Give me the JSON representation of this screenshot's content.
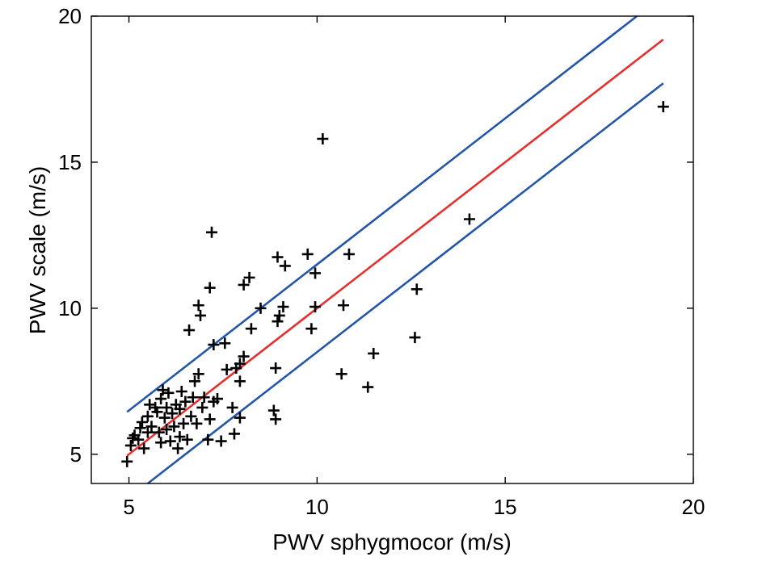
{
  "chart_data": {
    "type": "scatter",
    "title": "",
    "xlabel": "PWV sphygmocor (m/s)",
    "ylabel": "PWV scale (m/s)",
    "xlim": [
      4,
      20
    ],
    "ylim": [
      4,
      20
    ],
    "xticks": [
      5,
      10,
      15,
      20
    ],
    "yticks": [
      5,
      10,
      15,
      20
    ],
    "grid": false,
    "colors": {
      "points": "#000000",
      "identity": "#e53030",
      "limits": "#2456a8",
      "axes": "#000000"
    },
    "points": [
      [
        4.95,
        4.75
      ],
      [
        5.05,
        5.3
      ],
      [
        5.1,
        5.55
      ],
      [
        5.15,
        5.65
      ],
      [
        5.25,
        5.5
      ],
      [
        5.3,
        5.9
      ],
      [
        5.35,
        6.1
      ],
      [
        5.4,
        5.2
      ],
      [
        5.5,
        5.75
      ],
      [
        5.5,
        6.3
      ],
      [
        5.55,
        6.7
      ],
      [
        5.6,
        5.95
      ],
      [
        5.7,
        6.6
      ],
      [
        5.75,
        6.45
      ],
      [
        5.8,
        5.75
      ],
      [
        5.85,
        6.9
      ],
      [
        5.85,
        5.4
      ],
      [
        5.9,
        7.2
      ],
      [
        5.95,
        6.25
      ],
      [
        6.0,
        5.85
      ],
      [
        6.0,
        6.6
      ],
      [
        6.05,
        7.1
      ],
      [
        6.1,
        5.45
      ],
      [
        6.15,
        6.4
      ],
      [
        6.2,
        5.95
      ],
      [
        6.25,
        6.7
      ],
      [
        6.3,
        5.2
      ],
      [
        6.35,
        5.6
      ],
      [
        6.35,
        6.55
      ],
      [
        6.4,
        7.15
      ],
      [
        6.45,
        6.05
      ],
      [
        6.5,
        6.8
      ],
      [
        6.55,
        5.5
      ],
      [
        6.6,
        9.25
      ],
      [
        6.65,
        6.3
      ],
      [
        6.7,
        6.95
      ],
      [
        6.75,
        7.5
      ],
      [
        6.8,
        6.05
      ],
      [
        6.85,
        7.75
      ],
      [
        6.85,
        10.1
      ],
      [
        6.9,
        9.75
      ],
      [
        6.95,
        6.6
      ],
      [
        7.0,
        6.95
      ],
      [
        7.1,
        5.5
      ],
      [
        7.15,
        6.2
      ],
      [
        7.15,
        10.7
      ],
      [
        7.2,
        12.6
      ],
      [
        7.25,
        8.75
      ],
      [
        7.25,
        6.8
      ],
      [
        7.35,
        6.9
      ],
      [
        7.45,
        5.45
      ],
      [
        7.55,
        8.8
      ],
      [
        7.6,
        7.9
      ],
      [
        7.75,
        6.6
      ],
      [
        7.8,
        5.7
      ],
      [
        7.85,
        7.95
      ],
      [
        7.95,
        6.25
      ],
      [
        7.95,
        7.5
      ],
      [
        7.95,
        8.1
      ],
      [
        8.05,
        8.35
      ],
      [
        8.05,
        10.8
      ],
      [
        8.2,
        11.05
      ],
      [
        8.25,
        9.3
      ],
      [
        8.5,
        10.0
      ],
      [
        8.85,
        6.5
      ],
      [
        8.9,
        6.2
      ],
      [
        8.9,
        7.95
      ],
      [
        8.95,
        11.75
      ],
      [
        8.95,
        9.55
      ],
      [
        9.0,
        9.75
      ],
      [
        9.1,
        10.05
      ],
      [
        9.15,
        11.45
      ],
      [
        9.75,
        11.85
      ],
      [
        9.85,
        9.3
      ],
      [
        9.95,
        11.2
      ],
      [
        9.95,
        10.05
      ],
      [
        10.15,
        15.8
      ],
      [
        10.65,
        7.75
      ],
      [
        10.7,
        10.1
      ],
      [
        10.85,
        11.85
      ],
      [
        11.35,
        7.3
      ],
      [
        11.5,
        8.45
      ],
      [
        12.6,
        9.0
      ],
      [
        12.65,
        10.65
      ],
      [
        14.05,
        13.05
      ],
      [
        19.2,
        16.9
      ]
    ],
    "lines": [
      {
        "name": "",
        "kind": "identity",
        "x": [
          4.95,
          19.2
        ],
        "y": [
          4.95,
          19.2
        ]
      },
      {
        "name": "",
        "kind": "upper-limit",
        "x": [
          4.95,
          18.5
        ],
        "y": [
          6.45,
          20
        ]
      },
      {
        "name": "",
        "kind": "lower-limit",
        "x": [
          5.5,
          19.2
        ],
        "y": [
          4,
          17.7
        ]
      }
    ]
  }
}
